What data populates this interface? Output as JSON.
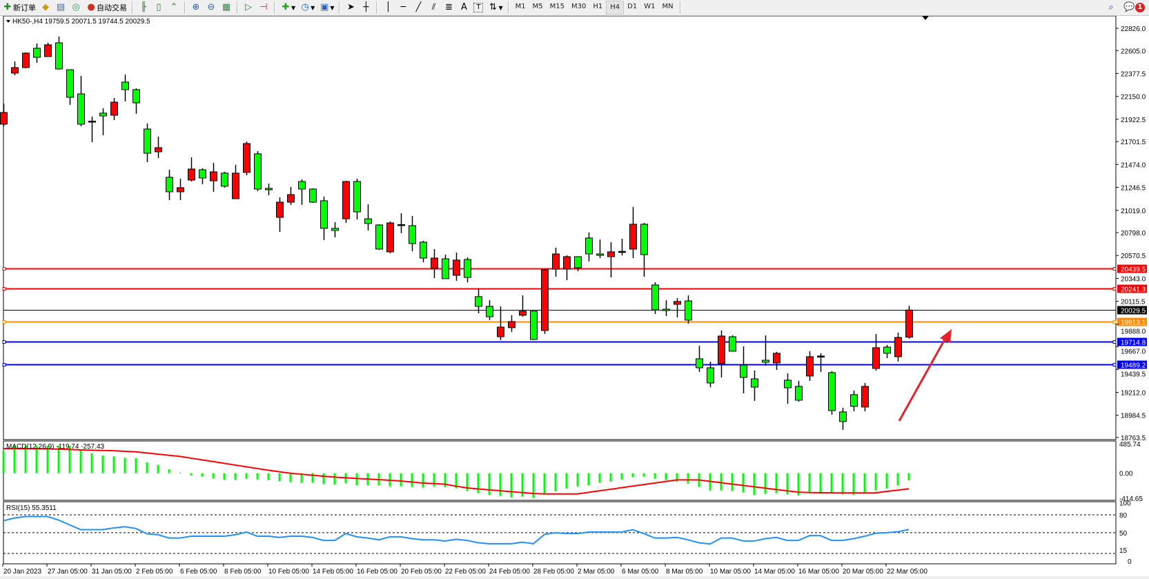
{
  "toolbar": {
    "new_order": "新订单",
    "auto_trading": "自动交易",
    "timeframes": [
      "M1",
      "M5",
      "M15",
      "M30",
      "H1",
      "H4",
      "D1",
      "W1",
      "MN"
    ],
    "active_timeframe": "H4",
    "notification_count": "1",
    "icons": [
      "new-order-icon",
      "market-watch-icon",
      "navigator-icon",
      "signals-icon",
      "auto-trading-icon",
      "bar-chart-icon",
      "candlestick-icon",
      "line-chart-icon",
      "zoom-in-icon",
      "zoom-out-icon",
      "tile-windows-icon",
      "auto-scroll-icon",
      "chart-shift-icon",
      "indicators-icon",
      "periods-icon",
      "templates-icon",
      "cursor-icon",
      "crosshair-icon",
      "vertical-line-icon",
      "horizontal-line-icon",
      "trendline-icon",
      "equidistant-channel-icon",
      "fibonacci-icon",
      "text-icon",
      "text-label-icon",
      "arrows-icon",
      "search-icon",
      "notification-icon"
    ]
  },
  "chart": {
    "header": "HK50-,H4  19759.5 20071.5 19744.5 20029.5",
    "colors": {
      "bull": "#ff0000",
      "bear": "#00ff00",
      "macd_hist": "#00ff00",
      "signal": "#ff0000",
      "rsi": "#1e90ff",
      "arrow": "#e8202a"
    },
    "price_ticks": [
      "22826.0",
      "22605.0",
      "22377.5",
      "22150.0",
      "21922.5",
      "21701.5",
      "21474.0",
      "21246.5",
      "21019.0",
      "20798.0",
      "20570.5",
      "20343.0",
      "20115.5",
      "19888.0",
      "19667.0",
      "19439.5",
      "19212.0",
      "18984.5",
      "18763.5"
    ],
    "price_range": [
      18763.5,
      22826.0
    ],
    "levels": [
      {
        "price": 20439.5,
        "label": "20439.5",
        "color": "#ff0000"
      },
      {
        "price": 20241.3,
        "label": "20241.3",
        "color": "#ff0000"
      },
      {
        "price": 20029.5,
        "label": "20029.5",
        "color": "#000000"
      },
      {
        "price": 19913.1,
        "label": "19913.1",
        "color": "#ff8c00"
      },
      {
        "price": 19714.8,
        "label": "19714.8",
        "color": "#0000ff"
      },
      {
        "price": 19489.2,
        "label": "19489.2",
        "color": "#0000ff"
      }
    ],
    "time_labels": [
      "20 Jan 2023",
      "27 Jan 05:00",
      "31 Jan 05:00",
      "2 Feb 05:00",
      "6 Feb 05:00",
      "8 Feb 05:00",
      "10 Feb 05:00",
      "14 Feb 05:00",
      "16 Feb 05:00",
      "20 Feb 05:00",
      "22 Feb 05:00",
      "24 Feb 05:00",
      "28 Feb 05:00",
      "2 Mar 05:00",
      "6 Mar 05:00",
      "8 Mar 05:00",
      "10 Mar 05:00",
      "14 Mar 05:00",
      "16 Mar 05:00",
      "20 Mar 05:00",
      "22 Mar 05:00"
    ],
    "candles_ohlc": [
      [
        21874,
        22079,
        21853,
        21990
      ],
      [
        22381,
        22497,
        22360,
        22436
      ],
      [
        22436,
        22586,
        22429,
        22580
      ],
      [
        22628,
        22675,
        22484,
        22538
      ],
      [
        22545,
        22682,
        22545,
        22662
      ],
      [
        22682,
        22744,
        22415,
        22422
      ],
      [
        22415,
        22415,
        22066,
        22141
      ],
      [
        22175,
        22354,
        21853,
        21874
      ],
      [
        21888,
        21949,
        21696,
        21901
      ],
      [
        21984,
        22032,
        21764,
        21956
      ],
      [
        21963,
        22134,
        21915,
        22093
      ],
      [
        22292,
        22367,
        22100,
        22217
      ],
      [
        22217,
        22230,
        21977,
        22086
      ],
      [
        21826,
        21881,
        21497,
        21586
      ],
      [
        21600,
        21751,
        21538,
        21641
      ],
      [
        21347,
        21422,
        21121,
        21203
      ],
      [
        21203,
        21333,
        21121,
        21244
      ],
      [
        21319,
        21545,
        21305,
        21429
      ],
      [
        21422,
        21436,
        21278,
        21340
      ],
      [
        21312,
        21490,
        21203,
        21401
      ],
      [
        21388,
        21401,
        21244,
        21258
      ],
      [
        21134,
        21470,
        21134,
        21388
      ],
      [
        21395,
        21703,
        21367,
        21682
      ],
      [
        21580,
        21607,
        21210,
        21230
      ],
      [
        21237,
        21285,
        21168,
        21223
      ],
      [
        20949,
        21148,
        20805,
        21100
      ],
      [
        21100,
        21251,
        21073,
        21175
      ],
      [
        21305,
        21326,
        21073,
        21230
      ],
      [
        21230,
        21237,
        21093,
        21100
      ],
      [
        21114,
        21155,
        20723,
        20840
      ],
      [
        20840,
        20901,
        20751,
        20819
      ],
      [
        20935,
        21312,
        20894,
        21305
      ],
      [
        21305,
        21333,
        20929,
        21004
      ],
      [
        20935,
        21079,
        20819,
        20888
      ],
      [
        20874,
        20881,
        20627,
        20634
      ],
      [
        20607,
        20908,
        20593,
        20894
      ],
      [
        20874,
        20990,
        20792,
        20874
      ],
      [
        20867,
        20963,
        20614,
        20689
      ],
      [
        20703,
        20716,
        20504,
        20545
      ],
      [
        20442,
        20634,
        20346,
        20545
      ],
      [
        20538,
        20579,
        20340,
        20340
      ],
      [
        20374,
        20600,
        20319,
        20525
      ],
      [
        20531,
        20552,
        20305,
        20353
      ],
      [
        20162,
        20244,
        19997,
        20066
      ],
      [
        20066,
        20127,
        19929,
        19963
      ],
      [
        19764,
        20066,
        19730,
        19860
      ],
      [
        19854,
        19977,
        19812,
        19915
      ],
      [
        19977,
        20175,
        19963,
        20018
      ],
      [
        20018,
        20018,
        19730,
        19737
      ],
      [
        19826,
        20435,
        19792,
        20428
      ],
      [
        20435,
        20648,
        20360,
        20586
      ],
      [
        20435,
        20572,
        20326,
        20559
      ],
      [
        20559,
        20559,
        20415,
        20449
      ],
      [
        20744,
        20799,
        20511,
        20586
      ],
      [
        20586,
        20730,
        20545,
        20572
      ],
      [
        20559,
        20703,
        20353,
        20607
      ],
      [
        20608,
        20737,
        20572,
        20608
      ],
      [
        20634,
        21052,
        20545,
        20881
      ],
      [
        20881,
        20894,
        20360,
        20579
      ],
      [
        20278,
        20305,
        19990,
        20031
      ],
      [
        20038,
        20127,
        19970,
        20024
      ],
      [
        20086,
        20148,
        19956,
        20114
      ],
      [
        20120,
        20175,
        19894,
        19929
      ],
      [
        19545,
        19675,
        19415,
        19456
      ],
      [
        19456,
        19517,
        19264,
        19305
      ],
      [
        19497,
        19826,
        19360,
        19771
      ],
      [
        19764,
        19778,
        19620,
        19620
      ],
      [
        19483,
        19668,
        19202,
        19360
      ],
      [
        19346,
        19429,
        19127,
        19264
      ],
      [
        19531,
        19778,
        19477,
        19511
      ],
      [
        19504,
        19614,
        19435,
        19600
      ],
      [
        19333,
        19401,
        19100,
        19257
      ],
      [
        19271,
        19326,
        19120,
        19134
      ],
      [
        19374,
        19620,
        19326,
        19566
      ],
      [
        19569,
        19600,
        19415,
        19569
      ],
      [
        19408,
        19422,
        18990,
        19031
      ],
      [
        19018,
        19059,
        18839,
        18922
      ],
      [
        19189,
        19230,
        19024,
        19073
      ],
      [
        19066,
        19305,
        19024,
        19271
      ],
      [
        19449,
        19792,
        19429,
        19655
      ],
      [
        19661,
        19682,
        19552,
        19600
      ],
      [
        19566,
        19805,
        19518,
        19757
      ],
      [
        19759.5,
        20071.5,
        19744.5,
        20029.5
      ]
    ]
  },
  "macd": {
    "label": "MACD(12,26,9) -119.74 -257.43",
    "ticks": [
      "485.74",
      "0.00",
      "-414.65"
    ],
    "range": [
      -414.65,
      485.74
    ],
    "histogram": [
      360,
      456,
      456,
      456,
      456,
      456,
      450,
      373,
      330,
      293,
      278,
      255,
      247,
      179,
      137,
      65,
      8,
      -34,
      -57,
      -84,
      -106,
      -110,
      -91,
      -103,
      -114,
      -129,
      -148,
      -163,
      -160,
      -179,
      -190,
      -167,
      -198,
      -198,
      -201,
      -217,
      -217,
      -228,
      -239,
      -217,
      -232,
      -247,
      -293,
      -331,
      -357,
      -376,
      -399,
      -388,
      -410,
      -331,
      -300,
      -255,
      -217,
      -198,
      -160,
      -141,
      -103,
      -65,
      -57,
      -91,
      -114,
      -141,
      -171,
      -228,
      -285,
      -285,
      -293,
      -319,
      -357,
      -342,
      -331,
      -350,
      -369,
      -323,
      -312,
      -331,
      -350,
      -357,
      -331,
      -285,
      -255,
      -198,
      -119.74
    ],
    "signal": [
      407,
      406,
      405,
      404,
      403,
      398,
      392,
      386,
      380,
      376,
      372,
      362,
      353,
      334,
      315,
      296,
      277,
      248,
      220,
      192,
      163,
      134,
      106,
      77,
      49,
      24,
      0,
      -17,
      -34,
      -50,
      -65,
      -76,
      -87,
      -96,
      -106,
      -118,
      -129,
      -146,
      -163,
      -172,
      -182,
      -215,
      -243,
      -260,
      -275,
      -290,
      -305,
      -320,
      -335,
      -342,
      -342,
      -342,
      -342,
      -316,
      -290,
      -265,
      -239,
      -213,
      -187,
      -161,
      -136,
      -110,
      -110,
      -112,
      -135,
      -157,
      -180,
      -202,
      -225,
      -247,
      -270,
      -292,
      -312,
      -320,
      -322,
      -324,
      -325,
      -325,
      -325,
      -325,
      -300,
      -280,
      -257.43
    ]
  },
  "rsi": {
    "label": "RSI(15) 55.3511",
    "ticks": [
      "100",
      "80",
      "50",
      "15",
      "0"
    ],
    "levels": [
      80,
      50,
      15
    ],
    "range": [
      0,
      100
    ],
    "values": [
      70,
      74.6,
      77,
      77,
      77,
      71,
      63,
      55,
      55,
      55,
      58,
      60,
      57,
      48,
      46.5,
      41,
      41,
      44,
      44,
      44,
      44,
      46.5,
      51,
      44,
      44,
      42,
      44,
      44,
      42,
      37,
      37,
      48.5,
      43,
      41,
      38,
      43,
      43,
      40,
      38,
      38,
      36,
      39,
      37,
      33,
      31.5,
      31.5,
      31.5,
      34,
      31.5,
      47,
      50,
      48.5,
      48.5,
      51,
      51,
      51,
      51,
      55,
      48.5,
      41,
      41,
      42,
      38,
      33,
      31,
      41,
      41,
      36,
      36,
      40,
      42,
      37,
      37,
      45,
      45,
      37,
      37,
      40,
      44,
      49,
      50,
      51.5,
      55.3511
    ]
  }
}
